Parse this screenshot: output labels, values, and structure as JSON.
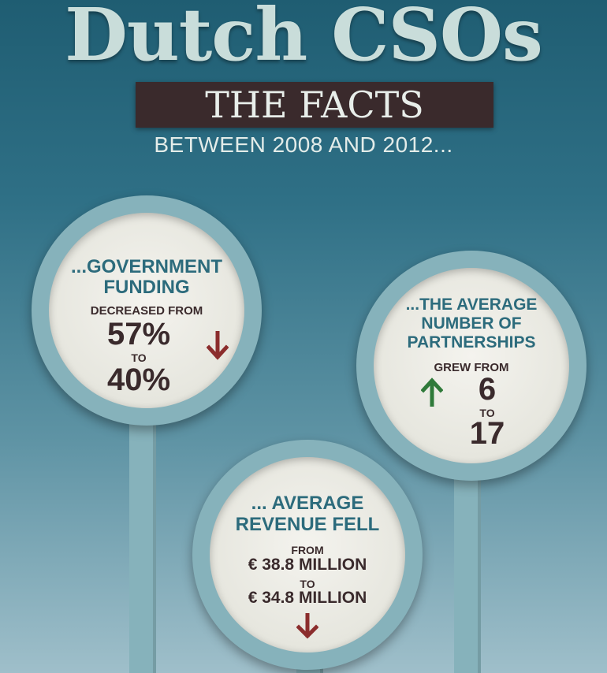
{
  "header": {
    "title": "Dutch CSOs",
    "subtitle": "THE FACTS",
    "period": "BETWEEN 2008 AND 2012..."
  },
  "facts": {
    "government": {
      "heading_1": "...GOVERNMENT",
      "heading_2": "FUNDING",
      "verb": "DECREASED FROM",
      "from": "57%",
      "to_label": "TO",
      "to": "40%",
      "trend": "down",
      "trend_color": "#8b2d2d",
      "icon": "arrow-down-icon"
    },
    "partnerships": {
      "heading_1": "...THE AVERAGE",
      "heading_2": "NUMBER OF",
      "heading_3": "PARTNERSHIPS",
      "verb": "GREW FROM",
      "from": "6",
      "to_label": "TO",
      "to": "17",
      "trend": "up",
      "trend_color": "#2f7a3a",
      "icon": "arrow-up-icon"
    },
    "revenue": {
      "heading_1": "... AVERAGE",
      "heading_2": "REVENUE FELL",
      "verb": "FROM",
      "from": "€ 38.8 MILLION",
      "to_label": "TO",
      "to": "€ 34.8 MILLION",
      "trend": "down",
      "trend_color": "#8b2d2d",
      "icon": "arrow-down-icon"
    }
  },
  "colors": {
    "title": "#c9ddda",
    "bar": "#3a2a2c",
    "heading": "#2c6b7c",
    "ring": "#86b2bb"
  }
}
